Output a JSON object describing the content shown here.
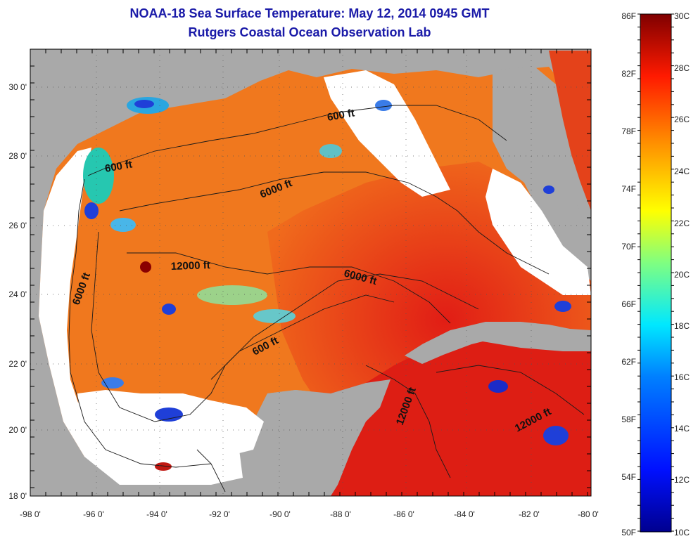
{
  "title": "NOAA-18 Sea Surface Temperature:  May 12, 2014 0945 GMT",
  "subtitle": "Rutgers Coastal Ocean Observation Lab",
  "lon_ticks": [
    "-98 0'",
    "-96 0'",
    "-94 0'",
    "-92 0'",
    "-90 0'",
    "-88 0'",
    "-86 0'",
    "-84 0'",
    "-82 0'",
    "-80 0'"
  ],
  "lat_ticks": [
    "30 0'",
    "28 0'",
    "26 0'",
    "24 0'",
    "22 0'",
    "20 0'",
    "18 0'"
  ],
  "contour_labels": {
    "a": "600 ft",
    "b": "600 ft",
    "c": "6000 ft",
    "d": "12000 ft",
    "e": "6000 ft",
    "f": "6000 ft",
    "g": "600 ft",
    "h": "12000 ft",
    "i": "12000 ft"
  },
  "colorbar": {
    "fahrenheit": [
      "86F",
      "82F",
      "78F",
      "74F",
      "70F",
      "66F",
      "62F",
      "58F",
      "54F",
      "50F"
    ],
    "celsius": [
      "30C",
      "28C",
      "26C",
      "24C",
      "22C",
      "20C",
      "18C",
      "16C",
      "14C",
      "12C",
      "10C"
    ]
  },
  "colors": {
    "title": "#1a1aa8",
    "land": "#a9a9a9",
    "no_data": "#ffffff",
    "warm": "#e8261a",
    "deep_red": "#8a0000",
    "orange": "#f07a1e",
    "cold": "#1f3fd8"
  }
}
